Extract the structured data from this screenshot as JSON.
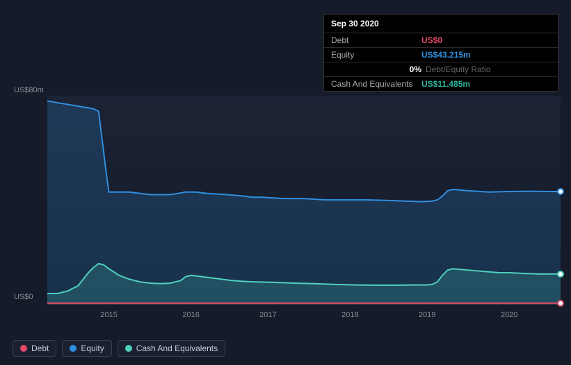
{
  "tooltip": {
    "date": "Sep 30 2020",
    "rows": [
      {
        "label": "Debt",
        "value": "US$0",
        "cls": "debt"
      },
      {
        "label": "Equity",
        "value": "US$43.215m",
        "cls": "equity"
      }
    ],
    "ratio_value": "0%",
    "ratio_label": "Debt/Equity Ratio",
    "cash_label": "Cash And Equivalents",
    "cash_value": "US$11.485m"
  },
  "chart": {
    "background": "#151b29",
    "grid_color": "#3a4050",
    "y_max_label": "US$80m",
    "y_min_label": "US$0",
    "y_max": 80,
    "y_min": 0,
    "x_years": [
      "2015",
      "2016",
      "2017",
      "2018",
      "2019",
      "2020"
    ],
    "x_year_positions": [
      0.12,
      0.28,
      0.43,
      0.59,
      0.74,
      0.9
    ],
    "series": {
      "debt": {
        "label": "Debt",
        "color": "#e24a68",
        "fill": "rgba(226,74,104,0.15)",
        "points": [
          [
            0.0,
            0.3
          ],
          [
            0.1,
            0.3
          ],
          [
            0.2,
            0.3
          ],
          [
            0.3,
            0.3
          ],
          [
            0.4,
            0.3
          ],
          [
            0.5,
            0.3
          ],
          [
            0.6,
            0.3
          ],
          [
            0.7,
            0.3
          ],
          [
            0.8,
            0.3
          ],
          [
            0.9,
            0.3
          ],
          [
            1.0,
            0.3
          ]
        ]
      },
      "equity": {
        "label": "Equity",
        "color": "#2f8fe0",
        "fill": "rgba(47,143,224,0.20)",
        "points": [
          [
            0.0,
            78
          ],
          [
            0.03,
            77
          ],
          [
            0.06,
            76
          ],
          [
            0.09,
            75
          ],
          [
            0.1,
            74
          ],
          [
            0.11,
            58
          ],
          [
            0.115,
            50
          ],
          [
            0.12,
            43
          ],
          [
            0.14,
            43
          ],
          [
            0.16,
            43
          ],
          [
            0.2,
            42
          ],
          [
            0.24,
            42
          ],
          [
            0.27,
            43
          ],
          [
            0.29,
            43
          ],
          [
            0.31,
            42.5
          ],
          [
            0.35,
            42
          ],
          [
            0.38,
            41.5
          ],
          [
            0.4,
            41
          ],
          [
            0.42,
            41
          ],
          [
            0.46,
            40.5
          ],
          [
            0.5,
            40.5
          ],
          [
            0.54,
            40
          ],
          [
            0.58,
            40
          ],
          [
            0.62,
            40
          ],
          [
            0.66,
            39.8
          ],
          [
            0.7,
            39.5
          ],
          [
            0.73,
            39.3
          ],
          [
            0.75,
            39.5
          ],
          [
            0.76,
            40
          ],
          [
            0.77,
            41.5
          ],
          [
            0.78,
            43.5
          ],
          [
            0.79,
            44
          ],
          [
            0.82,
            43.5
          ],
          [
            0.86,
            43
          ],
          [
            0.9,
            43.2
          ],
          [
            0.94,
            43.3
          ],
          [
            0.97,
            43.2
          ],
          [
            1.0,
            43.2
          ]
        ]
      },
      "cash": {
        "label": "Cash And Equivalents",
        "color": "#4fd0bd",
        "fill": "rgba(79,208,189,0.18)",
        "points": [
          [
            0.0,
            4
          ],
          [
            0.02,
            4
          ],
          [
            0.04,
            5
          ],
          [
            0.06,
            7
          ],
          [
            0.08,
            12
          ],
          [
            0.09,
            14
          ],
          [
            0.1,
            15.5
          ],
          [
            0.11,
            15
          ],
          [
            0.12,
            13.5
          ],
          [
            0.14,
            11
          ],
          [
            0.16,
            9.5
          ],
          [
            0.18,
            8.5
          ],
          [
            0.2,
            8
          ],
          [
            0.22,
            7.8
          ],
          [
            0.24,
            8
          ],
          [
            0.26,
            9
          ],
          [
            0.27,
            10.5
          ],
          [
            0.28,
            11
          ],
          [
            0.3,
            10.5
          ],
          [
            0.32,
            10
          ],
          [
            0.34,
            9.5
          ],
          [
            0.36,
            9
          ],
          [
            0.38,
            8.7
          ],
          [
            0.4,
            8.5
          ],
          [
            0.44,
            8.3
          ],
          [
            0.48,
            8
          ],
          [
            0.52,
            7.8
          ],
          [
            0.56,
            7.5
          ],
          [
            0.6,
            7.3
          ],
          [
            0.64,
            7.2
          ],
          [
            0.68,
            7.2
          ],
          [
            0.72,
            7.3
          ],
          [
            0.74,
            7.3
          ],
          [
            0.75,
            7.5
          ],
          [
            0.76,
            8.5
          ],
          [
            0.77,
            11
          ],
          [
            0.78,
            13
          ],
          [
            0.79,
            13.5
          ],
          [
            0.82,
            13
          ],
          [
            0.85,
            12.5
          ],
          [
            0.88,
            12
          ],
          [
            0.9,
            12
          ],
          [
            0.93,
            11.7
          ],
          [
            0.96,
            11.5
          ],
          [
            1.0,
            11.5
          ]
        ]
      }
    },
    "end_markers": [
      {
        "series": "equity",
        "border": "#2f8fe0"
      },
      {
        "series": "cash",
        "border": "#4fd0bd"
      },
      {
        "series": "debt",
        "border": "#e24a68"
      }
    ]
  },
  "legend_items": [
    {
      "key": "debt",
      "label": "Debt",
      "color": "#e24a68"
    },
    {
      "key": "equity",
      "label": "Equity",
      "color": "#2f8fe0"
    },
    {
      "key": "cash",
      "label": "Cash And Equivalents",
      "color": "#4fd0bd"
    }
  ]
}
